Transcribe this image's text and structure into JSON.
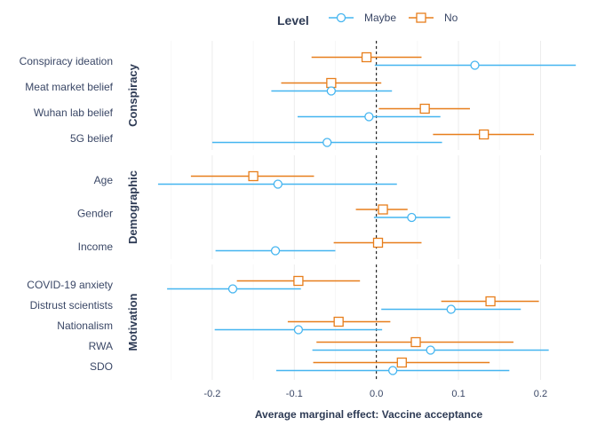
{
  "chart_data": {
    "type": "forest",
    "xlabel": "Average marginal effect: Vaccine acceptance",
    "xlim": [
      -0.28,
      0.245
    ],
    "xticks": [
      -0.2,
      -0.1,
      0.0,
      0.1,
      0.2
    ],
    "xtick_labels": [
      "-0.2",
      "-0.1",
      "0.0",
      "0.1",
      "0.2"
    ],
    "reference_line": 0,
    "grid": true,
    "legend": {
      "title": "Level",
      "position": "top",
      "entries": [
        {
          "name": "Maybe",
          "color": "#45b5f0",
          "marker": "circle"
        },
        {
          "name": "No",
          "color": "#e77e1c",
          "marker": "square"
        }
      ]
    },
    "panels": [
      {
        "name": "Conspiracy",
        "items": [
          {
            "label": "Conspiracy ideation",
            "No": {
              "est": -0.012,
              "lo": -0.079,
              "hi": 0.055
            },
            "Maybe": {
              "est": 0.12,
              "lo": -0.002,
              "hi": 0.243
            }
          },
          {
            "label": "Meat market belief",
            "No": {
              "est": -0.055,
              "lo": -0.116,
              "hi": 0.006
            },
            "Maybe": {
              "est": -0.055,
              "lo": -0.128,
              "hi": 0.019
            }
          },
          {
            "label": "Wuhan lab belief",
            "No": {
              "est": 0.059,
              "lo": 0.003,
              "hi": 0.114
            },
            "Maybe": {
              "est": -0.009,
              "lo": -0.096,
              "hi": 0.078
            }
          },
          {
            "label": "5G belief",
            "No": {
              "est": 0.131,
              "lo": 0.069,
              "hi": 0.192
            },
            "Maybe": {
              "est": -0.06,
              "lo": -0.2,
              "hi": 0.08
            }
          }
        ]
      },
      {
        "name": "Demographic",
        "items": [
          {
            "label": "Age",
            "No": {
              "est": -0.15,
              "lo": -0.226,
              "hi": -0.076
            },
            "Maybe": {
              "est": -0.12,
              "lo": -0.266,
              "hi": 0.025
            }
          },
          {
            "label": "Gender",
            "No": {
              "est": 0.008,
              "lo": -0.025,
              "hi": 0.038
            },
            "Maybe": {
              "est": 0.043,
              "lo": -0.003,
              "hi": 0.09
            }
          },
          {
            "label": "Income",
            "No": {
              "est": 0.002,
              "lo": -0.052,
              "hi": 0.055
            },
            "Maybe": {
              "est": -0.123,
              "lo": -0.196,
              "hi": -0.05
            }
          }
        ]
      },
      {
        "name": "Motivation",
        "items": [
          {
            "label": "COVID-19 anxiety",
            "No": {
              "est": -0.095,
              "lo": -0.17,
              "hi": -0.02
            },
            "Maybe": {
              "est": -0.175,
              "lo": -0.255,
              "hi": -0.092
            }
          },
          {
            "label": "Distrust scientists",
            "No": {
              "est": 0.139,
              "lo": 0.079,
              "hi": 0.198
            },
            "Maybe": {
              "est": 0.091,
              "lo": 0.006,
              "hi": 0.176
            }
          },
          {
            "label": "Nationalism",
            "No": {
              "est": -0.046,
              "lo": -0.108,
              "hi": 0.017
            },
            "Maybe": {
              "est": -0.095,
              "lo": -0.197,
              "hi": 0.007
            }
          },
          {
            "label": "RWA",
            "No": {
              "est": 0.048,
              "lo": -0.073,
              "hi": 0.167
            },
            "Maybe": {
              "est": 0.066,
              "lo": -0.078,
              "hi": 0.21
            }
          },
          {
            "label": "SDO",
            "No": {
              "est": 0.031,
              "lo": -0.077,
              "hi": 0.138
            },
            "Maybe": {
              "est": 0.02,
              "lo": -0.122,
              "hi": 0.162
            }
          }
        ]
      }
    ]
  }
}
